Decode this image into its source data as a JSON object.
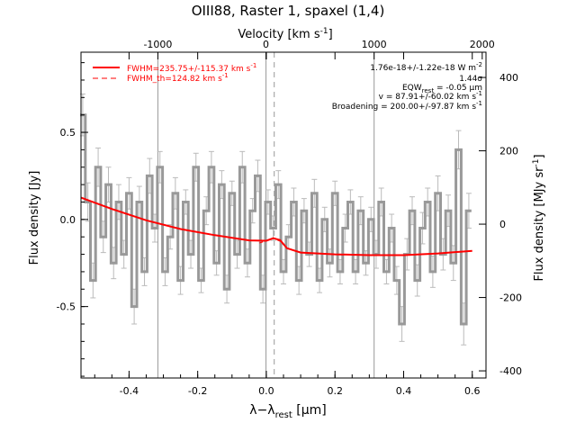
{
  "chart_data": {
    "type": "line",
    "title": "OIII88, Raster 1, spaxel (1,4)",
    "xlabel": "λ−λ",
    "xlabel_sub": "rest",
    "xlabel_unit": "[μm]",
    "ylabel": "Flux density [Jy]",
    "top_axis_label": "Velocity [km s",
    "top_axis_label_sup": "-1",
    "right_axis_label": "Flux density [MJy sr",
    "right_axis_label_sup": "-1",
    "xlim": [
      -0.54,
      0.64
    ],
    "ylim": [
      -0.91,
      0.96
    ],
    "x_ticks": [
      "-0.4",
      "-0.2",
      "0.0",
      "0.2",
      "0.4",
      "0.6"
    ],
    "y_ticks": [
      "0.5",
      "0.0",
      "-0.5"
    ],
    "top_ticks": [
      "-1000",
      "0",
      "1000",
      "2000"
    ],
    "top_tick_positions": [
      -0.316,
      -0.001,
      0.314,
      0.629
    ],
    "right_ticks": [
      "400",
      "200",
      "0",
      "-200",
      "-400"
    ],
    "right_tick_positions": [
      0.815,
      0.394,
      -0.027,
      -0.448,
      -0.869
    ],
    "vertical_lines": [
      -0.316,
      -0.001,
      0.314
    ],
    "dashed_line_x": 0.023,
    "annotations": [
      "1.76e-18+/-1.22e-18 W m",
      "1.44σ",
      "EQW",
      "v = 87.91+/-60.02 km s",
      "Broadening = 200.00+/-97.87 km s"
    ],
    "annotation_extras": {
      "flux_unit_sup": "-2",
      "eqw_sub": "rest",
      "eqw_value": " = -0.05 μm",
      "kms_sup": "-1"
    },
    "series": [
      {
        "name": "FWHM=235.75+/-115.37 km s",
        "name_sup": "-1",
        "color": "#ff0000",
        "style": "solid",
        "x": [
          -0.54,
          -0.45,
          -0.35,
          -0.25,
          -0.15,
          -0.05,
          0.0,
          0.02,
          0.04,
          0.06,
          0.1,
          0.2,
          0.3,
          0.4,
          0.5,
          0.6
        ],
        "y": [
          0.125,
          0.06,
          -0.005,
          -0.055,
          -0.09,
          -0.12,
          -0.122,
          -0.108,
          -0.118,
          -0.165,
          -0.19,
          -0.2,
          -0.205,
          -0.205,
          -0.195,
          -0.18
        ]
      },
      {
        "name": "FWHM_th=124.82 km s",
        "name_sup": "-1",
        "color": "#ff0000",
        "style": "dashed",
        "x": [
          -0.02,
          0.0,
          0.02,
          0.04,
          0.06
        ],
        "y": [
          -0.135,
          -0.122,
          -0.108,
          -0.125,
          -0.165
        ]
      },
      {
        "name": "",
        "color": "#999999",
        "style": "steps",
        "x": [
          -0.535,
          -0.52,
          -0.505,
          -0.49,
          -0.475,
          -0.46,
          -0.445,
          -0.43,
          -0.415,
          -0.4,
          -0.385,
          -0.37,
          -0.355,
          -0.34,
          -0.325,
          -0.31,
          -0.295,
          -0.28,
          -0.265,
          -0.25,
          -0.235,
          -0.22,
          -0.205,
          -0.19,
          -0.175,
          -0.16,
          -0.145,
          -0.13,
          -0.115,
          -0.1,
          -0.085,
          -0.07,
          -0.055,
          -0.04,
          -0.025,
          -0.01,
          0.005,
          0.02,
          0.035,
          0.05,
          0.065,
          0.08,
          0.095,
          0.11,
          0.125,
          0.14,
          0.155,
          0.17,
          0.185,
          0.2,
          0.215,
          0.23,
          0.245,
          0.26,
          0.275,
          0.29,
          0.305,
          0.32,
          0.335,
          0.35,
          0.365,
          0.38,
          0.395,
          0.41,
          0.425,
          0.44,
          0.455,
          0.47,
          0.485,
          0.5,
          0.515,
          0.53,
          0.545,
          0.56,
          0.575,
          0.59
        ],
        "y": [
          0.6,
          0.1,
          -0.35,
          0.3,
          -0.1,
          0.2,
          -0.25,
          0.1,
          -0.2,
          0.15,
          -0.5,
          0.1,
          -0.3,
          0.25,
          -0.05,
          0.3,
          -0.3,
          -0.1,
          0.15,
          -0.35,
          0.1,
          -0.2,
          0.3,
          -0.35,
          0.05,
          0.3,
          -0.25,
          0.2,
          -0.4,
          0.15,
          -0.2,
          0.3,
          -0.25,
          0.05,
          0.25,
          -0.4,
          0.1,
          -0.05,
          0.2,
          -0.3,
          -0.1,
          0.1,
          -0.35,
          0.05,
          -0.2,
          0.15,
          -0.35,
          0.0,
          -0.25,
          0.15,
          -0.3,
          -0.05,
          0.1,
          -0.3,
          0.05,
          -0.25,
          0.0,
          -0.2,
          0.1,
          -0.3,
          -0.05,
          -0.35,
          -0.6,
          -0.2,
          0.05,
          -0.35,
          -0.05,
          0.1,
          -0.3,
          0.15,
          -0.2,
          0.05,
          -0.25,
          0.4,
          -0.6,
          0.05
        ],
        "err": [
          0.12,
          0.11,
          0.1,
          0.11,
          0.09,
          0.1,
          0.09,
          0.1,
          0.08,
          0.09,
          0.1,
          0.09,
          0.08,
          0.1,
          0.08,
          0.09,
          0.08,
          0.07,
          0.09,
          0.08,
          0.07,
          0.08,
          0.08,
          0.07,
          0.08,
          0.09,
          0.07,
          0.08,
          0.08,
          0.07,
          0.08,
          0.09,
          0.08,
          0.07,
          0.09,
          0.08,
          0.07,
          0.07,
          0.08,
          0.07,
          0.07,
          0.08,
          0.08,
          0.07,
          0.07,
          0.08,
          0.07,
          0.07,
          0.08,
          0.07,
          0.07,
          0.08,
          0.07,
          0.07,
          0.08,
          0.07,
          0.07,
          0.08,
          0.08,
          0.07,
          0.08,
          0.08,
          0.1,
          0.09,
          0.08,
          0.09,
          0.09,
          0.08,
          0.09,
          0.1,
          0.09,
          0.09,
          0.1,
          0.11,
          0.12,
          0.1
        ]
      }
    ],
    "grid": false,
    "legend_position": "top-left"
  }
}
